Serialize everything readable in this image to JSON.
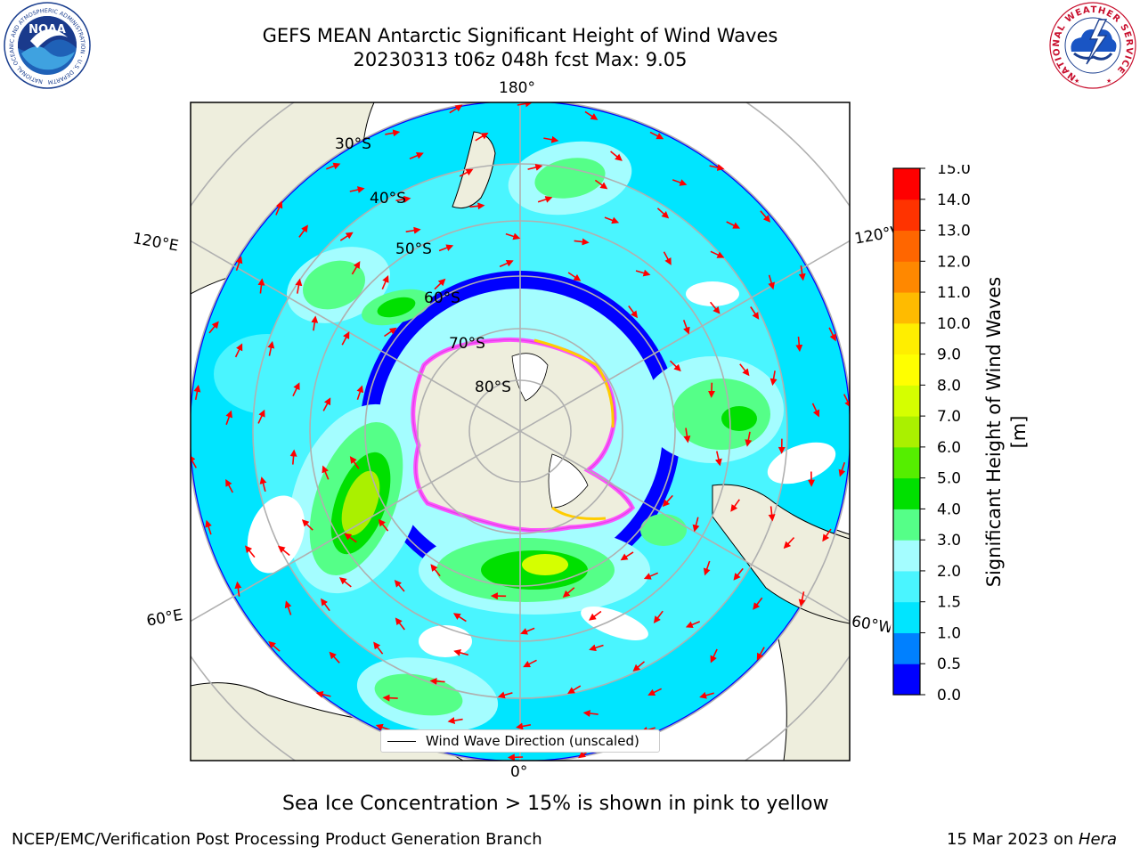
{
  "title": {
    "line1": "GEFS MEAN Antarctic Significant Height of Wind Waves",
    "line2": "20230313 t06z 048h fcst   Max: 9.05"
  },
  "logos": {
    "left_name": "NOAA",
    "left_ring_text": "NATIONAL OCEANIC AND ATMOSPHERIC ADMINISTRATION · U.S. DEPARTMENT OF COMMERCE",
    "right_ring_text": "NATIONAL WEATHER SERVICE"
  },
  "map": {
    "projection": "south-polar-stereographic",
    "longitude_labels": {
      "top": "180°",
      "bottom": "0°",
      "left_upper": "120°E",
      "right_upper": "120°W",
      "left_lower": "60°E",
      "right_lower": "60°W"
    },
    "latitude_labels": [
      "30°S",
      "40°S",
      "50°S",
      "60°S",
      "70°S",
      "80°S"
    ],
    "legend_label": "Wind Wave Direction (unscaled)",
    "arrow_color": "#ff0000",
    "land_color": "#eeeedd",
    "sea_ice_colors": [
      "#ff44ff",
      "#ffcc00"
    ]
  },
  "colorbar": {
    "label": "Significant Height of Wind Waves [m]",
    "ticks": [
      "0.0",
      "0.5",
      "1.0",
      "1.5",
      "2.0",
      "3.0",
      "4.0",
      "5.0",
      "6.0",
      "7.0",
      "8.0",
      "9.0",
      "10.0",
      "11.0",
      "12.0",
      "13.0",
      "14.0",
      "15.0"
    ],
    "colors": [
      "#0000ff",
      "#0080ff",
      "#00e5ff",
      "#4af5ff",
      "#a4fdff",
      "#55ff88",
      "#00e000",
      "#55ee00",
      "#aaf000",
      "#d5ff00",
      "#ffff00",
      "#ffee00",
      "#ffbb00",
      "#ff8800",
      "#ff6600",
      "#ff3300",
      "#ff0000"
    ]
  },
  "note": "Sea Ice Concentration > 15% is shown in pink to yellow",
  "footer": {
    "left": "NCEP/EMC/Verification Post Processing Product Generation Branch",
    "right_date": "15 Mar 2023 on ",
    "right_host": "Hera"
  }
}
